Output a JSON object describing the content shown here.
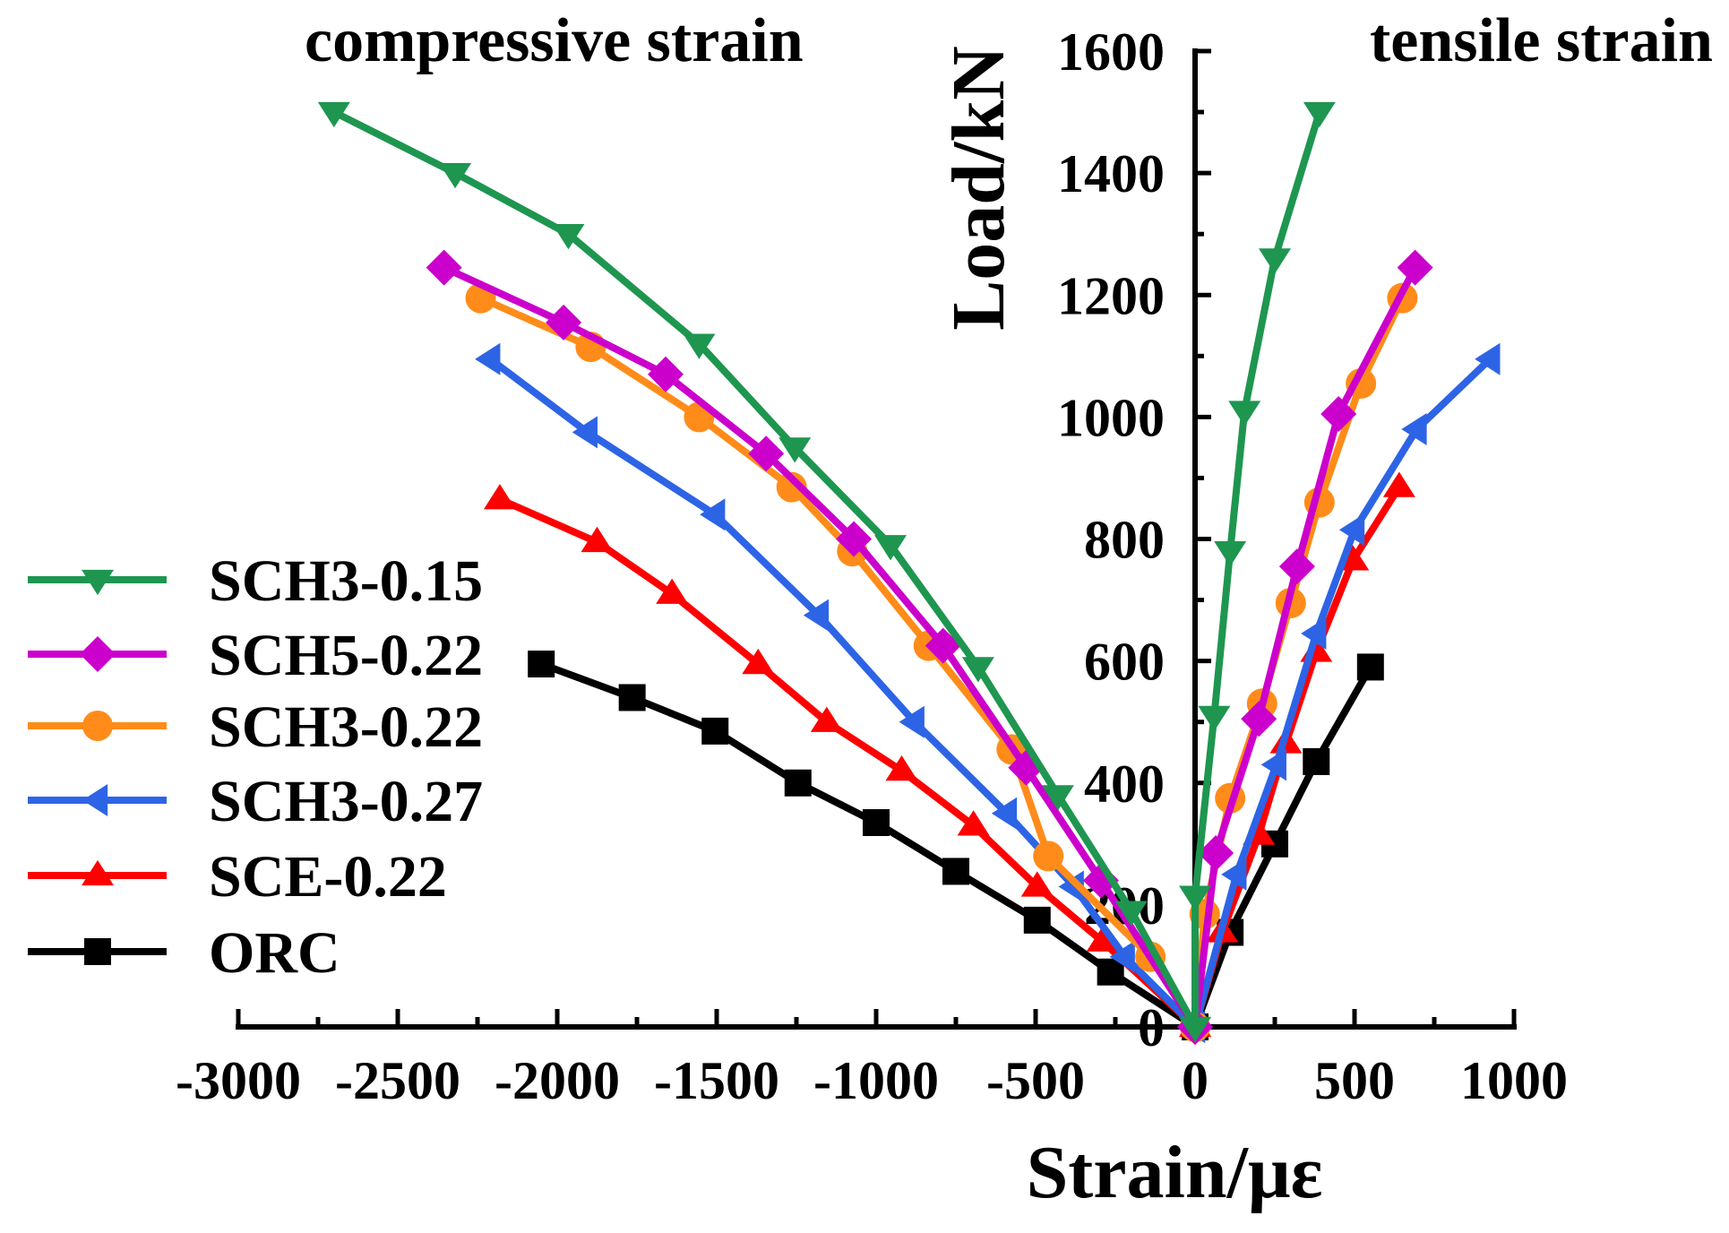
{
  "chart_data": {
    "type": "line",
    "title": "",
    "xlabel": "Strain/με",
    "ylabel": "Load/kN",
    "xlim": [
      -3000,
      1000
    ],
    "ylim": [
      0,
      1600
    ],
    "x_ticks": [
      -3000,
      -2500,
      -2000,
      -1500,
      -1000,
      -500,
      0,
      500,
      1000
    ],
    "y_ticks": [
      0,
      200,
      400,
      600,
      800,
      1000,
      1200,
      1400,
      1600
    ],
    "grid": false,
    "legend_position": "left",
    "annotations": [
      "compressive strain",
      "tensile strain"
    ],
    "series": [
      {
        "name": "SCH3-0.15",
        "color": "#1e9650",
        "marker": "triangle-down",
        "compressive": {
          "strain": [
            0,
            -200,
            -430,
            -680,
            -955,
            -1255,
            -1555,
            -1965,
            -2320,
            -2700
          ],
          "load": [
            0,
            190,
            380,
            590,
            790,
            950,
            1120,
            1300,
            1400,
            1500
          ]
        },
        "tensile": {
          "strain": [
            0,
            0,
            60,
            110,
            155,
            250,
            390
          ],
          "load": [
            0,
            215,
            510,
            780,
            1010,
            1260,
            1500
          ]
        }
      },
      {
        "name": "SCH5-0.22",
        "color": "#cc00cc",
        "marker": "diamond",
        "compressive": {
          "strain": [
            0,
            -295,
            -530,
            -790,
            -1070,
            -1345,
            -1660,
            -1980,
            -2355
          ],
          "load": [
            0,
            240,
            425,
            625,
            800,
            940,
            1070,
            1155,
            1245
          ]
        },
        "tensile": {
          "strain": [
            0,
            65,
            200,
            320,
            450,
            690
          ],
          "load": [
            0,
            285,
            505,
            755,
            1005,
            1245
          ]
        }
      },
      {
        "name": "SCH3-0.22",
        "color": "#ff8c1a",
        "marker": "circle",
        "compressive": {
          "strain": [
            0,
            -140,
            -460,
            -575,
            -835,
            -1075,
            -1265,
            -1555,
            -1895,
            -2240
          ],
          "load": [
            0,
            115,
            280,
            455,
            625,
            780,
            885,
            1000,
            1115,
            1195
          ]
        },
        "tensile": {
          "strain": [
            0,
            30,
            110,
            210,
            300,
            390,
            520,
            650
          ],
          "load": [
            0,
            185,
            375,
            530,
            695,
            860,
            1055,
            1195
          ]
        }
      },
      {
        "name": "SCH3-0.27",
        "color": "#2d64e6",
        "marker": "triangle-left",
        "compressive": {
          "strain": [
            0,
            -220,
            -380,
            -590,
            -880,
            -1180,
            -1505,
            -1905,
            -2210
          ],
          "load": [
            0,
            115,
            230,
            350,
            500,
            675,
            840,
            975,
            1095
          ]
        },
        "tensile": {
          "strain": [
            0,
            130,
            255,
            380,
            500,
            695,
            925
          ],
          "load": [
            0,
            250,
            430,
            645,
            815,
            980,
            1095
          ]
        }
      },
      {
        "name": "SCE-0.22",
        "color": "#ff0000",
        "marker": "triangle-up",
        "compressive": {
          "strain": [
            0,
            -290,
            -495,
            -695,
            -920,
            -1155,
            -1370,
            -1640,
            -1875,
            -2180
          ],
          "load": [
            0,
            140,
            230,
            330,
            420,
            500,
            595,
            710,
            795,
            865
          ]
        },
        "tensile": {
          "strain": [
            0,
            85,
            200,
            285,
            380,
            495,
            640
          ],
          "load": [
            0,
            155,
            315,
            465,
            615,
            765,
            885
          ]
        }
      },
      {
        "name": "ORC",
        "color": "#000000",
        "marker": "square",
        "compressive": {
          "strain": [
            0,
            -265,
            -495,
            -750,
            -1000,
            -1245,
            -1505,
            -1765,
            -2050
          ],
          "load": [
            0,
            90,
            175,
            255,
            335,
            400,
            485,
            540,
            595
          ]
        },
        "tensile": {
          "strain": [
            0,
            110,
            250,
            380,
            550
          ],
          "load": [
            0,
            155,
            300,
            435,
            590
          ]
        }
      }
    ]
  }
}
